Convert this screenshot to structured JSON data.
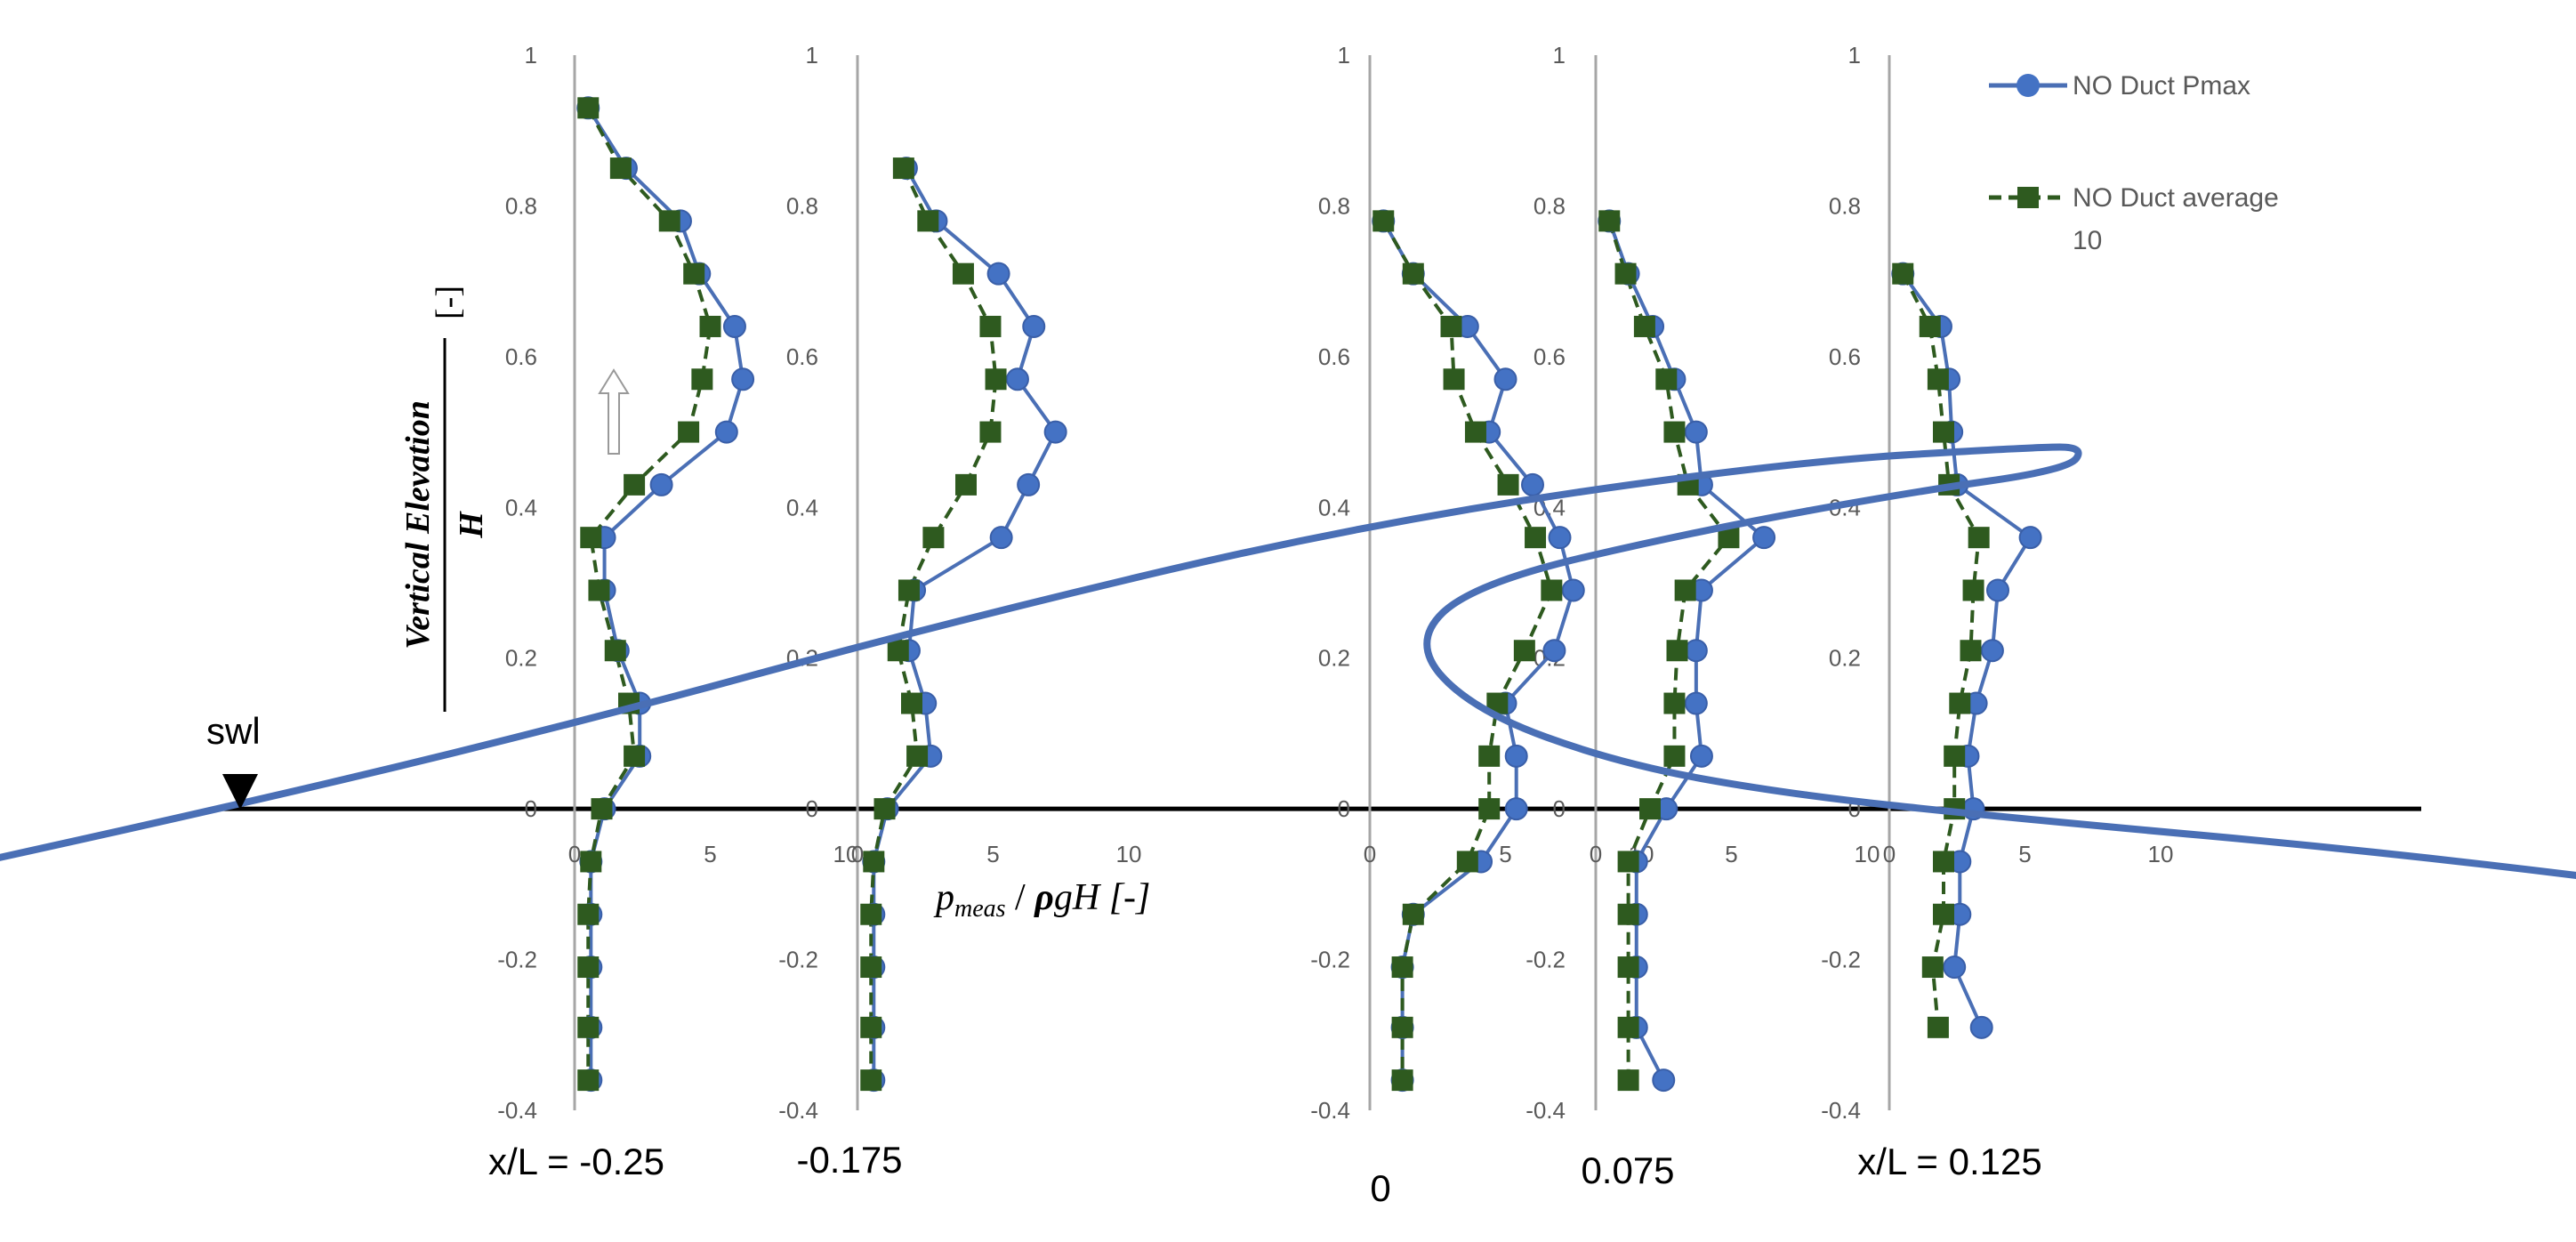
{
  "chart_data": {
    "type": "line",
    "ylabel": "Vertical Elevation",
    "ylabel_denominator": "H",
    "ylabel_unit": "[-]",
    "xlabel_main": "p",
    "xlabel_sub": "meas",
    "xlabel_rest": " / ",
    "xlabel_rho": "ρ",
    "xlabel_tail": "gH [-]",
    "ylim": [
      -0.4,
      1
    ],
    "y_ticks": [
      "1",
      "0.8",
      "0.6",
      "0.4",
      "0.2",
      "0",
      "-0.2",
      "-0.4"
    ],
    "x_ticks": [
      "0",
      "5",
      "10"
    ],
    "swl_label": "swl",
    "legend": [
      {
        "label": "NO Duct Pmax",
        "color": "#4472c4",
        "marker": "circle"
      },
      {
        "label_line1": "NO Duct average",
        "label_line2": "10",
        "color": "#2e5a1f",
        "marker": "square"
      }
    ],
    "panels": [
      {
        "station": "x/L = -0.25",
        "pmax": [
          [
            0.5,
            0.93
          ],
          [
            1.9,
            0.85
          ],
          [
            3.9,
            0.78
          ],
          [
            4.6,
            0.71
          ],
          [
            5.9,
            0.64
          ],
          [
            6.2,
            0.57
          ],
          [
            5.6,
            0.5
          ],
          [
            3.2,
            0.43
          ],
          [
            1.1,
            0.36
          ],
          [
            1.1,
            0.29
          ],
          [
            1.6,
            0.21
          ],
          [
            2.4,
            0.14
          ],
          [
            2.4,
            0.07
          ],
          [
            1.1,
            0.0
          ],
          [
            0.6,
            -0.07
          ],
          [
            0.6,
            -0.14
          ],
          [
            0.6,
            -0.21
          ],
          [
            0.6,
            -0.29
          ],
          [
            0.6,
            -0.36
          ]
        ],
        "avg": [
          [
            0.5,
            0.93
          ],
          [
            1.7,
            0.85
          ],
          [
            3.5,
            0.78
          ],
          [
            4.4,
            0.71
          ],
          [
            5.0,
            0.64
          ],
          [
            4.7,
            0.57
          ],
          [
            4.2,
            0.5
          ],
          [
            2.2,
            0.43
          ],
          [
            0.6,
            0.36
          ],
          [
            0.9,
            0.29
          ],
          [
            1.5,
            0.21
          ],
          [
            2.0,
            0.14
          ],
          [
            2.2,
            0.07
          ],
          [
            1.0,
            0.0
          ],
          [
            0.6,
            -0.07
          ],
          [
            0.5,
            -0.14
          ],
          [
            0.5,
            -0.21
          ],
          [
            0.5,
            -0.29
          ],
          [
            0.5,
            -0.36
          ]
        ]
      },
      {
        "station": "-0.175",
        "pmax": [
          [
            1.8,
            0.85
          ],
          [
            2.9,
            0.78
          ],
          [
            5.2,
            0.71
          ],
          [
            6.5,
            0.64
          ],
          [
            5.9,
            0.57
          ],
          [
            7.3,
            0.5
          ],
          [
            6.3,
            0.43
          ],
          [
            5.3,
            0.36
          ],
          [
            2.1,
            0.29
          ],
          [
            1.9,
            0.21
          ],
          [
            2.5,
            0.14
          ],
          [
            2.7,
            0.07
          ],
          [
            1.1,
            0.0
          ],
          [
            0.6,
            -0.07
          ],
          [
            0.6,
            -0.14
          ],
          [
            0.6,
            -0.21
          ],
          [
            0.6,
            -0.29
          ],
          [
            0.6,
            -0.36
          ]
        ],
        "avg": [
          [
            1.7,
            0.85
          ],
          [
            2.6,
            0.78
          ],
          [
            3.9,
            0.71
          ],
          [
            4.9,
            0.64
          ],
          [
            5.1,
            0.57
          ],
          [
            4.9,
            0.5
          ],
          [
            4.0,
            0.43
          ],
          [
            2.8,
            0.36
          ],
          [
            1.9,
            0.29
          ],
          [
            1.5,
            0.21
          ],
          [
            2.0,
            0.14
          ],
          [
            2.2,
            0.07
          ],
          [
            1.0,
            0.0
          ],
          [
            0.6,
            -0.07
          ],
          [
            0.5,
            -0.14
          ],
          [
            0.5,
            -0.21
          ],
          [
            0.5,
            -0.29
          ],
          [
            0.5,
            -0.36
          ]
        ]
      },
      {
        "station": "0",
        "pmax": [
          [
            0.5,
            0.78
          ],
          [
            1.6,
            0.71
          ],
          [
            3.6,
            0.64
          ],
          [
            5.0,
            0.57
          ],
          [
            4.4,
            0.5
          ],
          [
            6.0,
            0.43
          ],
          [
            7.0,
            0.36
          ],
          [
            7.5,
            0.29
          ],
          [
            6.8,
            0.21
          ],
          [
            5.0,
            0.14
          ],
          [
            5.4,
            0.07
          ],
          [
            5.4,
            0.0
          ],
          [
            4.1,
            -0.07
          ],
          [
            1.6,
            -0.14
          ],
          [
            1.2,
            -0.21
          ],
          [
            1.2,
            -0.29
          ],
          [
            1.2,
            -0.36
          ]
        ],
        "avg": [
          [
            0.5,
            0.78
          ],
          [
            1.6,
            0.71
          ],
          [
            3.0,
            0.64
          ],
          [
            3.1,
            0.57
          ],
          [
            3.9,
            0.5
          ],
          [
            5.1,
            0.43
          ],
          [
            6.1,
            0.36
          ],
          [
            6.7,
            0.29
          ],
          [
            5.7,
            0.21
          ],
          [
            4.7,
            0.14
          ],
          [
            4.4,
            0.07
          ],
          [
            4.4,
            0.0
          ],
          [
            3.6,
            -0.07
          ],
          [
            1.6,
            -0.14
          ],
          [
            1.2,
            -0.21
          ],
          [
            1.2,
            -0.29
          ],
          [
            1.2,
            -0.36
          ]
        ]
      },
      {
        "station": "0.075",
        "pmax": [
          [
            0.5,
            0.78
          ],
          [
            1.2,
            0.71
          ],
          [
            2.1,
            0.64
          ],
          [
            2.9,
            0.57
          ],
          [
            3.7,
            0.5
          ],
          [
            3.9,
            0.43
          ],
          [
            6.2,
            0.36
          ],
          [
            3.9,
            0.29
          ],
          [
            3.7,
            0.21
          ],
          [
            3.7,
            0.14
          ],
          [
            3.9,
            0.07
          ],
          [
            2.6,
            0.0
          ],
          [
            1.5,
            -0.07
          ],
          [
            1.5,
            -0.14
          ],
          [
            1.5,
            -0.21
          ],
          [
            1.5,
            -0.29
          ],
          [
            2.5,
            -0.36
          ]
        ],
        "avg": [
          [
            0.5,
            0.78
          ],
          [
            1.1,
            0.71
          ],
          [
            1.8,
            0.64
          ],
          [
            2.6,
            0.57
          ],
          [
            2.9,
            0.5
          ],
          [
            3.4,
            0.43
          ],
          [
            4.9,
            0.36
          ],
          [
            3.3,
            0.29
          ],
          [
            3.0,
            0.21
          ],
          [
            2.9,
            0.14
          ],
          [
            2.9,
            0.07
          ],
          [
            2.0,
            0.0
          ],
          [
            1.2,
            -0.07
          ],
          [
            1.2,
            -0.14
          ],
          [
            1.2,
            -0.21
          ],
          [
            1.2,
            -0.29
          ],
          [
            1.2,
            -0.36
          ]
        ]
      },
      {
        "station": "x/L = 0.125",
        "pmax": [
          [
            0.5,
            0.71
          ],
          [
            1.9,
            0.64
          ],
          [
            2.2,
            0.57
          ],
          [
            2.3,
            0.5
          ],
          [
            2.5,
            0.43
          ],
          [
            5.2,
            0.36
          ],
          [
            4.0,
            0.29
          ],
          [
            3.8,
            0.21
          ],
          [
            3.2,
            0.14
          ],
          [
            2.9,
            0.07
          ],
          [
            3.1,
            0.0
          ],
          [
            2.6,
            -0.07
          ],
          [
            2.6,
            -0.14
          ],
          [
            2.4,
            -0.21
          ],
          [
            3.4,
            -0.29
          ]
        ],
        "avg": [
          [
            0.5,
            0.71
          ],
          [
            1.5,
            0.64
          ],
          [
            1.8,
            0.57
          ],
          [
            2.0,
            0.5
          ],
          [
            2.2,
            0.43
          ],
          [
            3.3,
            0.36
          ],
          [
            3.1,
            0.29
          ],
          [
            3.0,
            0.21
          ],
          [
            2.6,
            0.14
          ],
          [
            2.4,
            0.07
          ],
          [
            2.4,
            0.0
          ],
          [
            2.0,
            -0.07
          ],
          [
            2.0,
            -0.14
          ],
          [
            1.6,
            -0.21
          ],
          [
            1.8,
            -0.29
          ]
        ]
      }
    ],
    "wave_profile": [
      [
        -0.38,
        -0.125
      ],
      [
        -0.3,
        -0.03
      ],
      [
        -0.2,
        0.1
      ],
      [
        -0.1,
        0.25
      ],
      [
        0.0,
        0.38
      ],
      [
        0.1,
        0.46
      ],
      [
        0.16,
        0.48
      ],
      [
        0.172,
        0.48
      ],
      [
        0.168,
        0.45
      ],
      [
        0.13,
        0.42
      ],
      [
        0.08,
        0.37
      ],
      [
        0.025,
        0.3
      ],
      [
        0.01,
        0.22
      ],
      [
        0.025,
        0.13
      ],
      [
        0.06,
        0.06
      ],
      [
        0.1,
        0.02
      ],
      [
        0.15,
        -0.01
      ],
      [
        0.25,
        -0.06
      ],
      [
        0.35,
        -0.13
      ],
      [
        0.45,
        -0.19
      ],
      [
        0.55,
        -0.205
      ],
      [
        0.65,
        -0.205
      ]
    ]
  }
}
